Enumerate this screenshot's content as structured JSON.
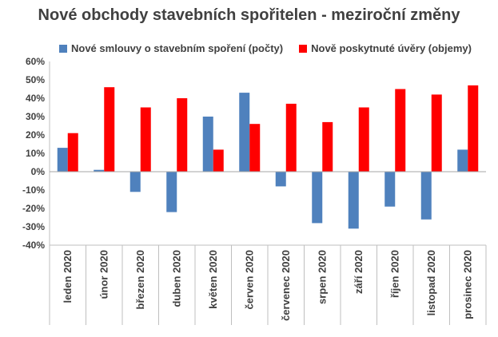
{
  "chart_data": {
    "type": "bar",
    "title": "Nové obchody stavebních spořitelen - meziroční změny",
    "xlabel": "",
    "ylabel": "",
    "categories": [
      "leden 2020",
      "únor 2020",
      "březen 2020",
      "duben 2020",
      "květen 2020",
      "červen 2020",
      "červenec 2020",
      "srpen 2020",
      "září 2020",
      "říjen 2020",
      "listopad 2020",
      "prosinec 2020"
    ],
    "series": [
      {
        "name": "Nové smlouvy o stavebním spoření (počty)",
        "color": "#4f81bd",
        "values": [
          13,
          1,
          -11,
          -22,
          30,
          43,
          -8,
          -28,
          -31,
          -19,
          -26,
          12
        ]
      },
      {
        "name": "Nově poskytnuté úvěry (objemy)",
        "color": "#ff0000",
        "values": [
          21,
          46,
          35,
          40,
          12,
          26,
          37,
          27,
          35,
          45,
          42,
          47
        ]
      }
    ],
    "ylim": [
      -40,
      60
    ],
    "yticks": [
      "-40%",
      "-30%",
      "-20%",
      "-10%",
      "0%",
      "10%",
      "20%",
      "30%",
      "40%",
      "50%",
      "60%"
    ],
    "grid": false,
    "legend_position": "top"
  }
}
